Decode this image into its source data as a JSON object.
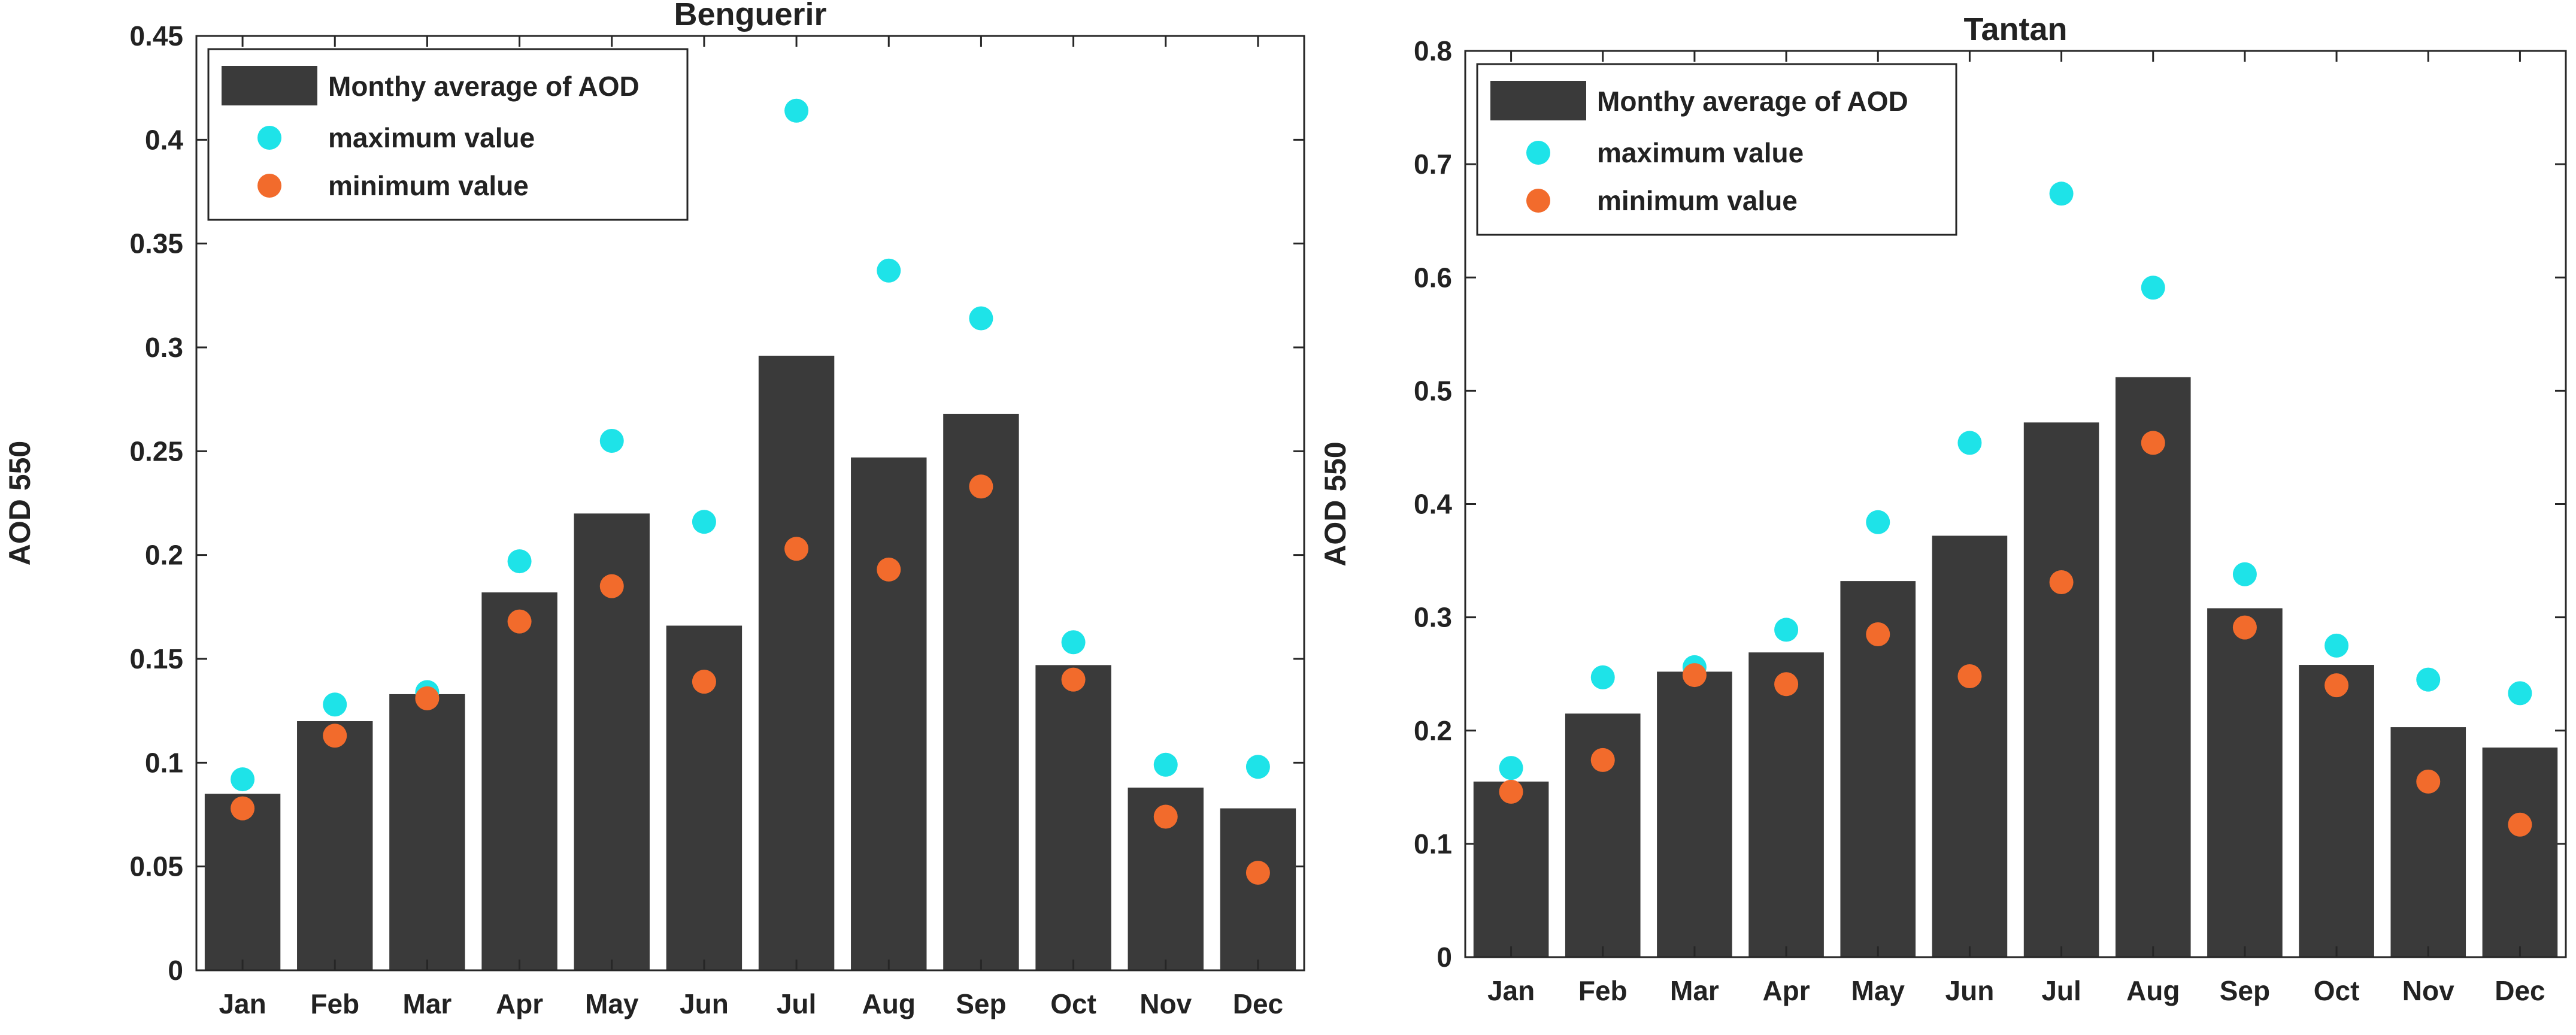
{
  "chart_data": [
    {
      "type": "bar",
      "title": "Benguerir",
      "xlabel": "",
      "ylabel": "AOD 550",
      "ylim": [
        0,
        0.45
      ],
      "yticks": [
        "0",
        "0.05",
        "0.1",
        "0.15",
        "0.2",
        "0.25",
        "0.3",
        "0.35",
        "0.4",
        "0.45"
      ],
      "categories": [
        "Jan",
        "Feb",
        "Mar",
        "Apr",
        "May",
        "Jun",
        "Jul",
        "Aug",
        "Sep",
        "Oct",
        "Nov",
        "Dec"
      ],
      "legend_position": "top-left",
      "grid": false,
      "series": [
        {
          "name": "Monthy average of AOD",
          "kind": "bar",
          "color": "#3a3a3a",
          "values": [
            0.085,
            0.12,
            0.133,
            0.182,
            0.22,
            0.166,
            0.296,
            0.247,
            0.268,
            0.147,
            0.088,
            0.078
          ]
        },
        {
          "name": "maximum value",
          "kind": "scatter",
          "color": "#1ee3e8",
          "values": [
            0.092,
            0.128,
            0.134,
            0.197,
            0.255,
            0.216,
            0.414,
            0.337,
            0.314,
            0.158,
            0.099,
            0.098
          ]
        },
        {
          "name": "minimum value",
          "kind": "scatter",
          "color": "#f26b2c",
          "values": [
            0.078,
            0.113,
            0.131,
            0.168,
            0.185,
            0.139,
            0.203,
            0.193,
            0.233,
            0.14,
            0.074,
            0.047
          ]
        }
      ]
    },
    {
      "type": "bar",
      "title": "Tantan",
      "xlabel": "",
      "ylabel": "AOD 550",
      "ylim": [
        0,
        0.8
      ],
      "yticks": [
        "0",
        "0.1",
        "0.2",
        "0.3",
        "0.4",
        "0.5",
        "0.6",
        "0.7",
        "0.8"
      ],
      "categories": [
        "Jan",
        "Feb",
        "Mar",
        "Apr",
        "May",
        "Jun",
        "Jul",
        "Aug",
        "Sep",
        "Oct",
        "Nov",
        "Dec"
      ],
      "legend_position": "top-left",
      "grid": false,
      "series": [
        {
          "name": "Monthy average of AOD",
          "kind": "bar",
          "color": "#3a3a3a",
          "values": [
            0.155,
            0.215,
            0.252,
            0.269,
            0.332,
            0.372,
            0.472,
            0.512,
            0.308,
            0.258,
            0.203,
            0.185
          ]
        },
        {
          "name": "maximum value",
          "kind": "scatter",
          "color": "#1ee3e8",
          "values": [
            0.167,
            0.247,
            0.256,
            0.289,
            0.384,
            0.454,
            0.674,
            0.591,
            0.338,
            0.275,
            0.245,
            0.233
          ]
        },
        {
          "name": "minimum value",
          "kind": "scatter",
          "color": "#f26b2c",
          "values": [
            0.146,
            0.174,
            0.249,
            0.241,
            0.285,
            0.248,
            0.331,
            0.454,
            0.291,
            0.24,
            0.155,
            0.117
          ]
        }
      ]
    }
  ]
}
